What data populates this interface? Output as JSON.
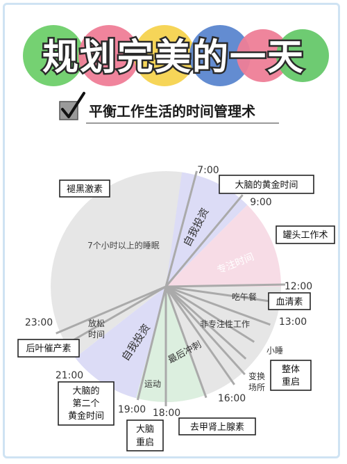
{
  "title": "规划完美的一天",
  "subtitle": "平衡工作生活的时间管理术",
  "colors": {
    "title_fill": "#ffffff",
    "title_stroke": "#2a2a2a",
    "circle_colors": [
      "#6ecf6a",
      "#ef7d97",
      "#f6d34f",
      "#5b86cf",
      "#ee7e97",
      "#66c86a"
    ],
    "sleep": "#e6e6e6",
    "invest": "#dcdcf6",
    "focus": "#f7dce6",
    "cardio": "#dcefdf",
    "lines": "#aaaaaa"
  },
  "times": {
    "t7": "7:00",
    "t9": "9:00",
    "t12": "12:00",
    "t13": "13:00",
    "t16": "16:00",
    "t18": "18:00",
    "t19": "19:00",
    "t21": "21:00",
    "t23": "23:00"
  },
  "segments": {
    "sleep": "7个小时以上的睡眠",
    "invest_morning": "自我投资",
    "focus": "专注时间",
    "lunch": "吃午餐",
    "nonfocus": "非专注性工作",
    "nap": "小睡",
    "change_line1": "变换",
    "change_line2": "场所",
    "sprint": "最后冲刺",
    "exercise": "运动",
    "invest_evening": "自我投资",
    "relax_line1": "放松",
    "relax_line2": "时间"
  },
  "callouts": {
    "melatonin": "褪黑激素",
    "golden": "大脑的黄金时间",
    "pomodoro": "罐头工作术",
    "serotonin": "血清素",
    "reboot_line1": "整体",
    "reboot_line2": "重启",
    "adrenaline": "去甲肾上腺素",
    "brain_reboot_line1": "大脑",
    "brain_reboot_line2": "重启",
    "second_golden_line1": "大脑的",
    "second_golden_line2": "第二个",
    "second_golden_line3": "黄金时间",
    "growth": "后叶催产素"
  }
}
